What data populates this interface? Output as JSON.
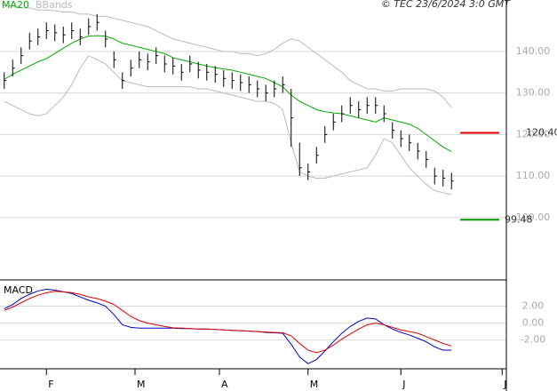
{
  "credit": "© TEC 23/6/2024 3:0 GMT",
  "chart_data": [
    {
      "type": "ohlc",
      "x": [
        1,
        3,
        5,
        7,
        9,
        11,
        13,
        15,
        17,
        19,
        21,
        23,
        25,
        27,
        29,
        31,
        33,
        35,
        37,
        39,
        41,
        43,
        45,
        47,
        49,
        51,
        53,
        55,
        57,
        59,
        61,
        63,
        65,
        67,
        69,
        71,
        73,
        75,
        77,
        79,
        81,
        83,
        85,
        87,
        89,
        91,
        93,
        95,
        97,
        99,
        101,
        103,
        105,
        107
      ],
      "high": [
        135,
        138,
        141,
        144.5,
        145.5,
        147,
        146.5,
        146,
        147,
        145.5,
        148,
        149,
        145,
        140,
        135,
        138,
        140,
        139.5,
        141,
        139,
        138.5,
        137,
        139,
        137.5,
        137,
        136.5,
        135.5,
        135,
        134.5,
        134,
        133,
        132,
        133,
        134,
        131,
        118,
        113,
        117,
        122,
        125,
        127,
        129,
        128,
        129,
        129,
        127,
        123,
        121,
        120,
        118,
        116,
        112,
        111.5,
        110.8
      ],
      "low": [
        131,
        134,
        137,
        140.5,
        141.5,
        143,
        142.5,
        142,
        143,
        141.5,
        144,
        145,
        141,
        136,
        131,
        134,
        136,
        135.5,
        137,
        135,
        134.5,
        133,
        135,
        133.5,
        133,
        132.5,
        131.5,
        131,
        130.5,
        130,
        129,
        128,
        129,
        130,
        117,
        110,
        109,
        113,
        118,
        121,
        123,
        125,
        124,
        125,
        125,
        123,
        119,
        117,
        116,
        114,
        112,
        108,
        107.5,
        106.8
      ],
      "close": [
        133,
        136,
        139,
        142.5,
        143.5,
        145,
        144.5,
        144,
        145,
        143.5,
        146,
        147,
        143,
        138,
        133,
        136,
        138,
        137.5,
        139,
        137,
        136.5,
        135,
        137,
        135.5,
        135,
        134.5,
        133.5,
        133,
        132.5,
        132,
        131,
        130,
        131,
        132,
        124,
        112,
        111,
        115,
        120,
        123,
        125,
        127,
        126,
        127,
        127,
        125,
        121,
        119,
        118,
        116,
        114,
        110,
        109.5,
        108.8
      ],
      "color": "#000000",
      "series": [
        {
          "name": "MA20",
          "color": "#00aa00",
          "values": [
            133.3,
            134.5,
            135.5,
            136.5,
            137.5,
            138.3,
            139.5,
            140.8,
            142,
            143,
            143.7,
            143.8,
            143.7,
            143,
            142,
            141.5,
            141,
            140.5,
            140,
            139.5,
            138.5,
            138,
            137.5,
            137,
            136.5,
            136.1,
            135.8,
            135.5,
            135,
            134.5,
            134,
            133.5,
            132.5,
            131.5,
            129.5,
            128,
            127,
            126,
            125.5,
            125.2,
            125,
            124.5,
            124,
            123.5,
            123,
            124,
            123.5,
            123,
            122.5,
            121.5,
            120,
            118.5,
            117,
            115.9
          ]
        }
      ],
      "bands": {
        "name": "BBands",
        "color": "#bbbbbb",
        "upper": [
          151,
          151,
          150.5,
          150.5,
          150,
          150,
          149.8,
          149.5,
          149.5,
          149,
          149,
          148.5,
          148.5,
          148,
          147.5,
          147,
          146.5,
          146,
          145,
          144,
          143,
          142.5,
          142,
          141.5,
          141,
          140.5,
          140,
          140,
          139.5,
          139.5,
          139,
          139.5,
          140.5,
          142,
          143,
          142.5,
          141,
          139.5,
          138,
          136.5,
          135,
          133,
          132,
          131,
          131,
          130.5,
          130.5,
          131,
          131,
          131,
          131,
          130.5,
          129,
          126.5
        ],
        "lower": [
          128,
          127,
          126,
          125,
          124.5,
          125,
          127,
          129,
          132,
          136,
          139,
          138,
          137,
          135,
          133,
          132.5,
          132,
          131.5,
          131.5,
          131.5,
          131.5,
          131.5,
          131.5,
          131,
          131,
          130.5,
          130,
          129.5,
          129,
          128.5,
          128,
          128,
          127.5,
          126,
          118,
          111,
          110,
          109.5,
          109.5,
          110,
          110.5,
          111,
          111.5,
          112,
          115,
          119,
          118,
          115,
          112,
          110,
          108,
          106.5,
          106,
          105.5
        ]
      },
      "hlines": [
        {
          "value": 120.4,
          "label": "120.40",
          "color": "#dd0000"
        },
        {
          "value": 99.48,
          "label": "99.48",
          "color": "#009900"
        }
      ],
      "xlim": [
        0,
        120
      ],
      "xticks": [
        {
          "value": 11,
          "label": "F"
        },
        {
          "value": 32,
          "label": "M"
        },
        {
          "value": 52,
          "label": "A"
        },
        {
          "value": 73,
          "label": "M"
        },
        {
          "value": 95,
          "label": "J"
        },
        {
          "value": 119,
          "label": "J"
        }
      ],
      "ylim": [
        85.2,
        152.4
      ],
      "yticks": [
        {
          "value": 100,
          "label": "100.00"
        },
        {
          "value": 110,
          "label": "110.00"
        },
        {
          "value": 120,
          "label": "120.00"
        },
        {
          "value": 130,
          "label": "130.00"
        },
        {
          "value": 140,
          "label": "140.00"
        }
      ],
      "grid": true
    },
    {
      "type": "line",
      "title": "MACD",
      "series": [
        {
          "color": "#0000cc",
          "values": [
            1.7,
            2.2,
            2.9,
            3.4,
            3.8,
            4,
            3.9,
            3.7,
            3.5,
            3.1,
            2.7,
            2.4,
            2,
            1,
            -0.2,
            -0.5,
            -0.6,
            -0.6,
            -0.6,
            -0.6,
            -0.6,
            -0.65,
            -0.65,
            -0.7,
            -0.7,
            -0.75,
            -0.8,
            -0.85,
            -0.9,
            -0.95,
            -1,
            -1.1,
            -1.15,
            -1.2,
            -2.5,
            -4,
            -4.8,
            -4.3,
            -3.3,
            -2.2,
            -1.2,
            -0.4,
            0.2,
            0.6,
            0.5,
            -0.2,
            -0.7,
            -1.1,
            -1.4,
            -1.8,
            -2.2,
            -2.8,
            -3.2,
            -3.2
          ]
        },
        {
          "color": "#dd0000",
          "values": [
            1.5,
            1.9,
            2.4,
            2.9,
            3.3,
            3.6,
            3.75,
            3.7,
            3.6,
            3.4,
            3.1,
            2.9,
            2.6,
            2.2,
            1.5,
            0.8,
            0.3,
            0,
            -0.2,
            -0.4,
            -0.55,
            -0.6,
            -0.65,
            -0.7,
            -0.7,
            -0.75,
            -0.8,
            -0.85,
            -0.9,
            -0.95,
            -1,
            -1.05,
            -1.1,
            -1.15,
            -1.5,
            -2.4,
            -3.2,
            -3.5,
            -3.2,
            -2.6,
            -1.9,
            -1.3,
            -0.7,
            -0.2,
            0,
            -0.2,
            -0.5,
            -0.8,
            -1,
            -1.2,
            -1.6,
            -2,
            -2.4,
            -2.7
          ]
        }
      ],
      "ylim": [
        -5.4,
        5
      ],
      "yticks": [
        {
          "value": -2,
          "label": "-2.00"
        },
        {
          "value": 0,
          "label": "0.00"
        },
        {
          "value": 2,
          "label": "2.00"
        }
      ],
      "grid": true
    }
  ]
}
